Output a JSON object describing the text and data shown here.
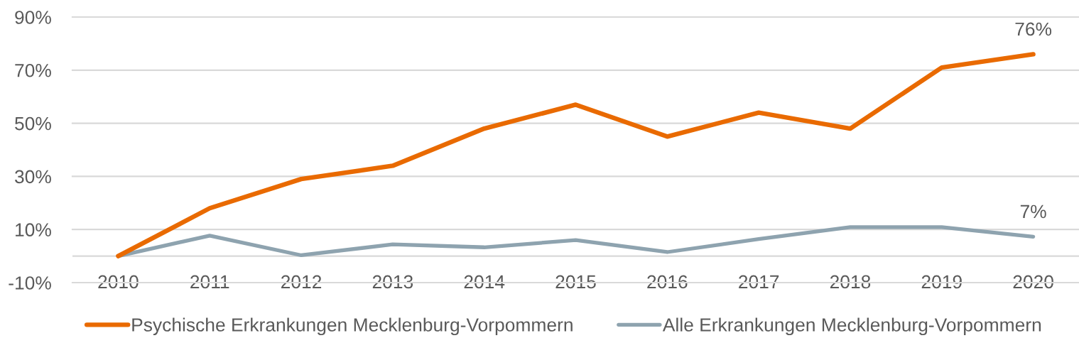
{
  "chart_data": {
    "type": "line",
    "categories": [
      "2010",
      "2011",
      "2012",
      "2013",
      "2014",
      "2015",
      "2016",
      "2017",
      "2018",
      "2019",
      "2020"
    ],
    "series": [
      {
        "name": "Psychische Erkrankungen Mecklenburg-Vorpommern",
        "color": "#e96a00",
        "values": [
          0,
          18,
          29,
          34,
          48,
          57,
          45,
          54,
          48,
          71,
          76
        ],
        "value_labels": [
          null,
          null,
          null,
          null,
          null,
          null,
          null,
          null,
          null,
          null,
          "76%"
        ]
      },
      {
        "name": "Alle Erkrankungen Mecklenburg-Vorpommern",
        "color": "#8ea3af",
        "values": [
          0,
          7.7,
          0.3,
          4.4,
          3.3,
          6.0,
          1.5,
          6.4,
          10.9,
          10.9,
          7.3
        ],
        "value_labels": [
          null,
          null,
          null,
          null,
          null,
          null,
          null,
          null,
          null,
          null,
          "7%"
        ]
      }
    ],
    "ylim": [
      -10,
      90
    ],
    "yticks": [
      {
        "value": -10,
        "label": "-10%"
      },
      {
        "value": 10,
        "label": "10%"
      },
      {
        "value": 30,
        "label": "30%"
      },
      {
        "value": 50,
        "label": "50%"
      },
      {
        "value": 70,
        "label": "70%"
      },
      {
        "value": 90,
        "label": "90%"
      }
    ],
    "ref_lines": [
      {
        "axis": "y",
        "value": 0,
        "color": "#d9d9d9"
      }
    ],
    "grid": "y",
    "legend": "bottom",
    "marker": "none",
    "line_style": "solid"
  }
}
